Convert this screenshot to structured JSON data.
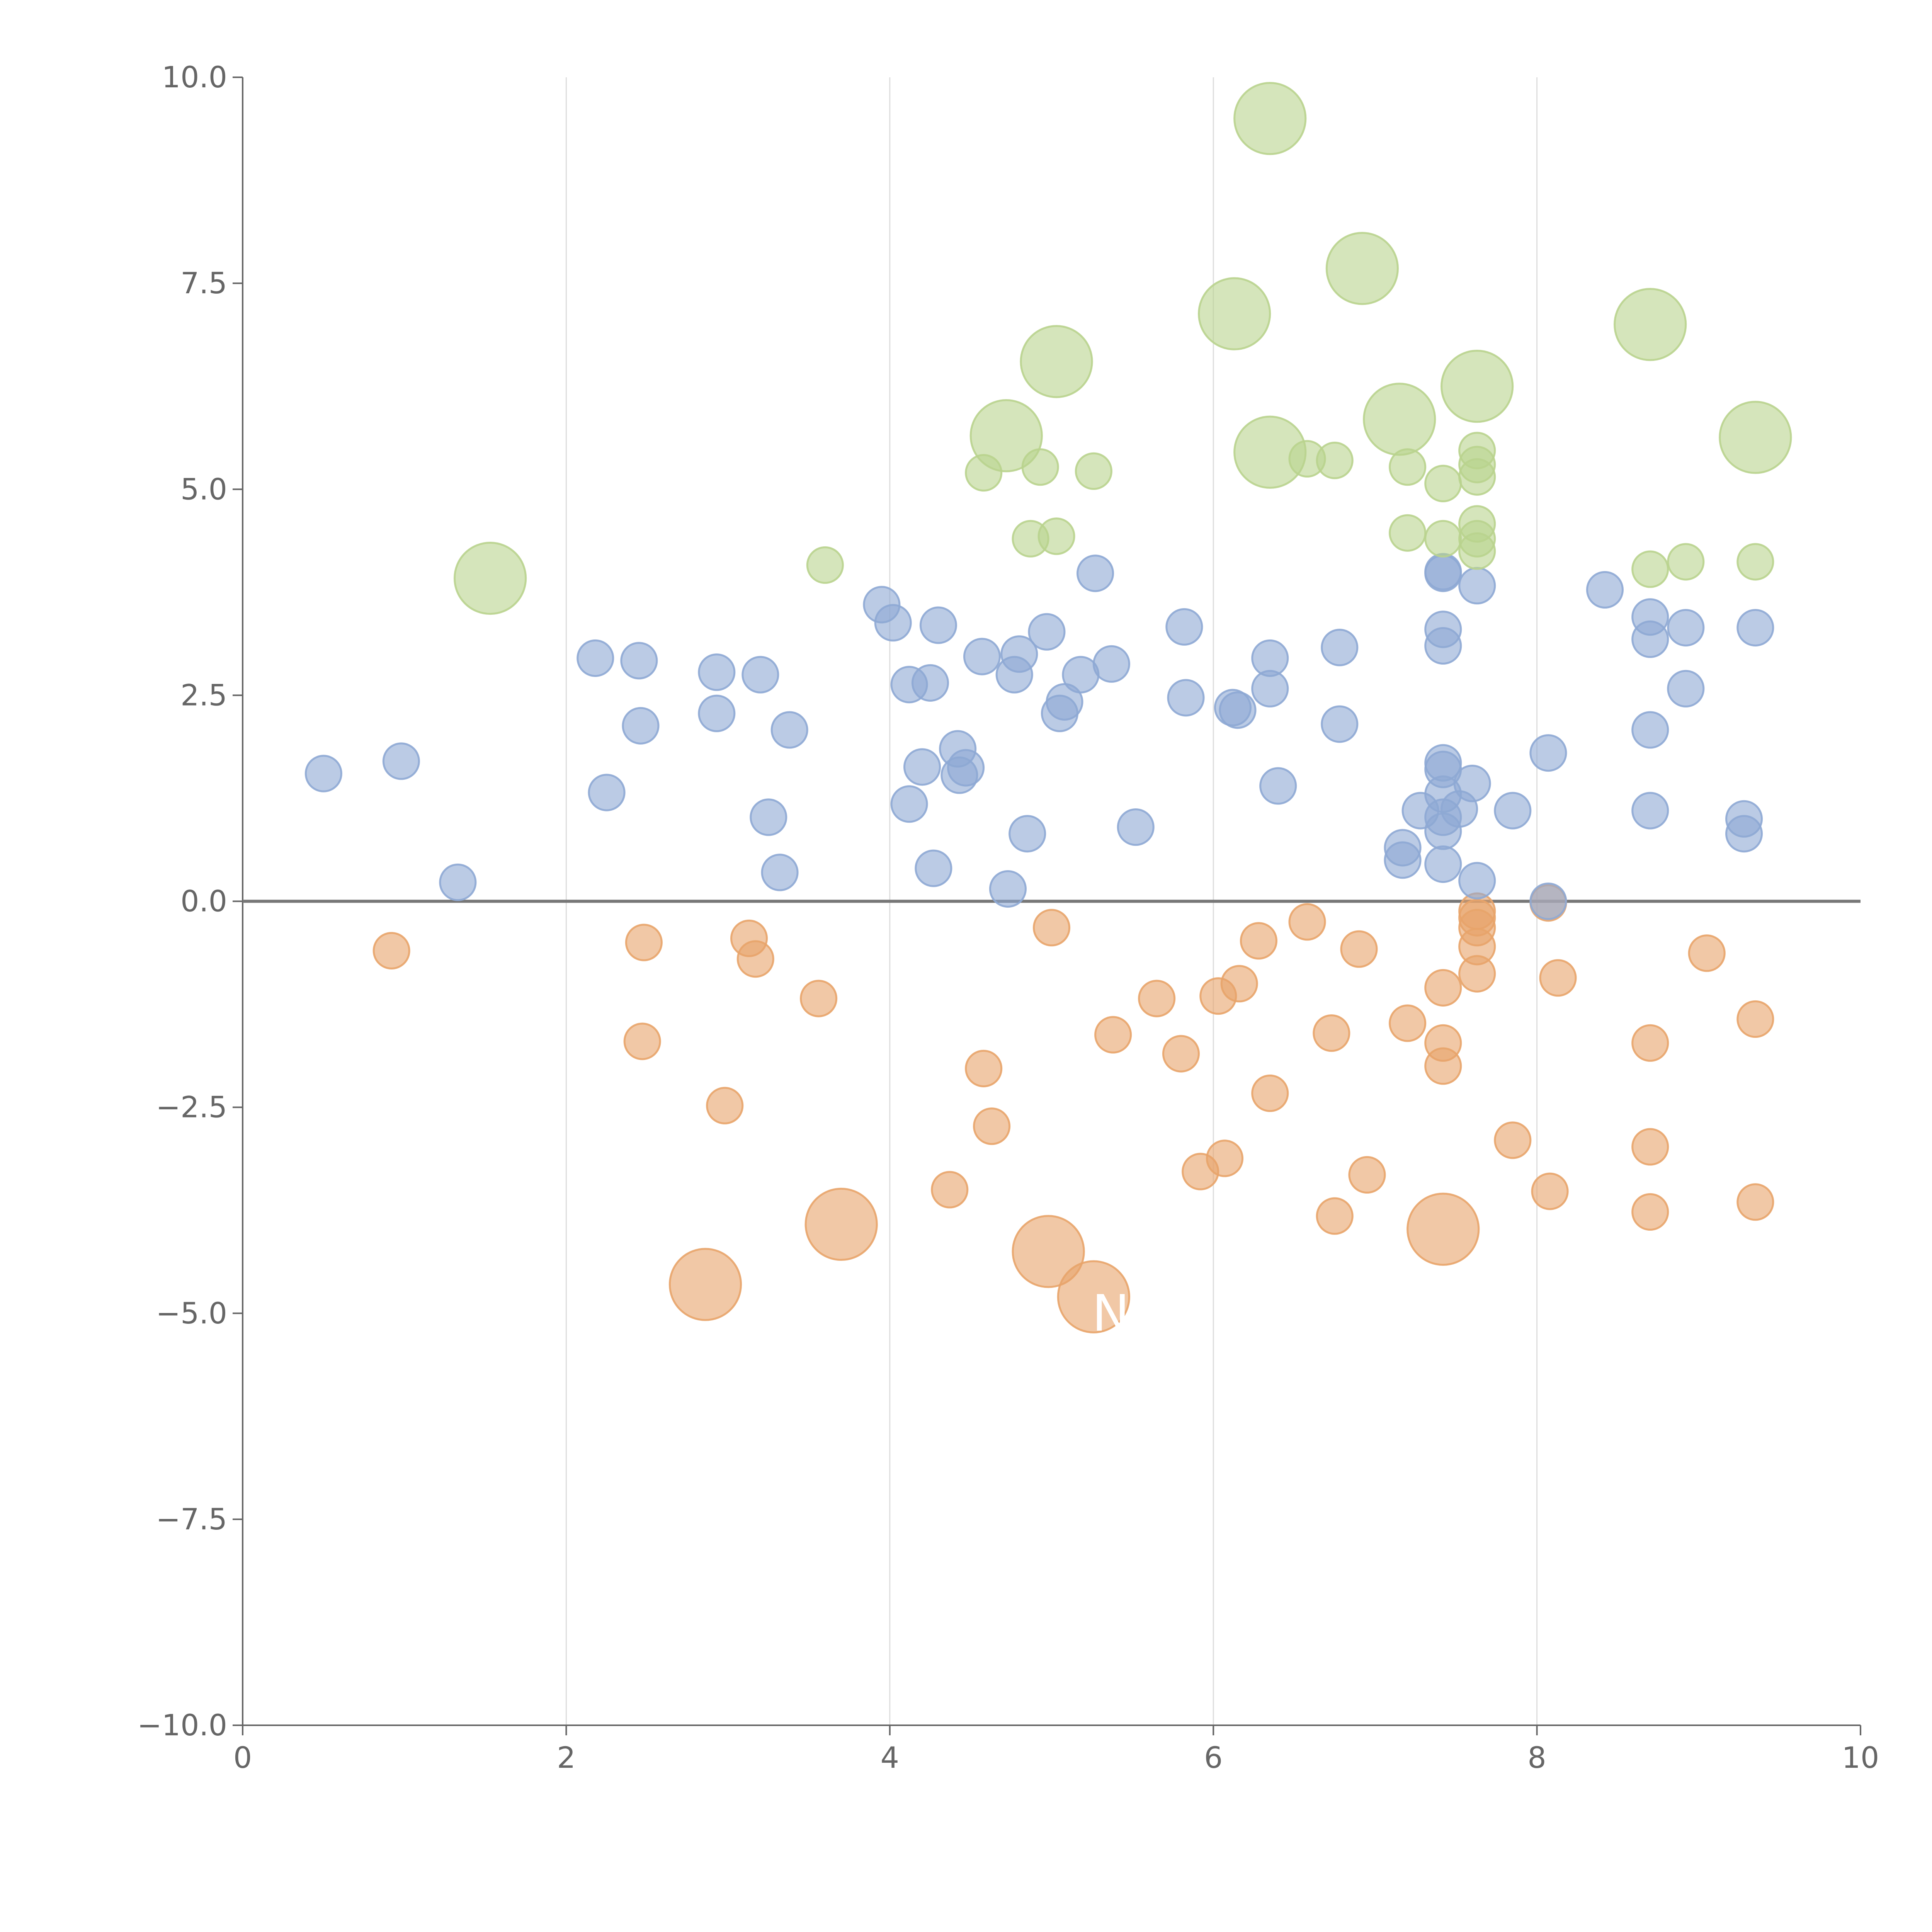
{
  "chart_data": {
    "type": "scatter",
    "title": "",
    "xlabel": "",
    "ylabel": "",
    "xlim": [
      0,
      10
    ],
    "ylim": [
      -10,
      10
    ],
    "xticks": [
      "0",
      "2",
      "4",
      "6",
      "8",
      "10"
    ],
    "yticks": [
      "10.0",
      "7.5",
      "5.0",
      "2.5",
      "0.0",
      "−2.5",
      "−5.0",
      "−7.5",
      "−10.0"
    ],
    "grid": "vertical",
    "zero_line": true,
    "legend": "none",
    "annotations": [
      {
        "text": "NM",
        "x": 5.5,
        "y": -5.0
      }
    ],
    "series": [
      {
        "name": "negative",
        "color": "#e8a46a",
        "points": [
          [
            0.92,
            -0.6,
            0.11
          ],
          [
            2.48,
            -0.5,
            0.11
          ],
          [
            2.47,
            -1.7,
            0.11
          ],
          [
            3.13,
            -0.45,
            0.11
          ],
          [
            3.17,
            -0.7,
            0.11
          ],
          [
            2.98,
            -2.48,
            0.11
          ],
          [
            3.56,
            -1.18,
            0.11
          ],
          [
            5.0,
            -0.32,
            0.11
          ],
          [
            4.58,
            -2.03,
            0.11
          ],
          [
            4.63,
            -2.73,
            0.11
          ],
          [
            4.37,
            -3.5,
            0.11
          ],
          [
            5.38,
            -1.62,
            0.11
          ],
          [
            5.65,
            -1.18,
            0.11
          ],
          [
            5.8,
            -1.85,
            0.11
          ],
          [
            6.03,
            -1.15,
            0.11
          ],
          [
            6.16,
            -1.0,
            0.11
          ],
          [
            6.28,
            -0.48,
            0.11
          ],
          [
            6.35,
            -2.33,
            0.11
          ],
          [
            5.92,
            -3.28,
            0.11
          ],
          [
            6.07,
            -3.12,
            0.11
          ],
          [
            6.58,
            -0.25,
            0.11
          ],
          [
            6.9,
            -0.58,
            0.11
          ],
          [
            6.73,
            -1.6,
            0.11
          ],
          [
            6.75,
            -3.82,
            0.11
          ],
          [
            6.95,
            -3.32,
            0.11
          ],
          [
            7.2,
            -1.48,
            0.11
          ],
          [
            7.42,
            -1.05,
            0.11
          ],
          [
            7.42,
            -1.72,
            0.11
          ],
          [
            7.42,
            -2.0,
            0.11
          ],
          [
            7.63,
            -0.12,
            0.11
          ],
          [
            7.63,
            -0.2,
            0.11
          ],
          [
            7.63,
            -0.32,
            0.11
          ],
          [
            7.63,
            -0.55,
            0.11
          ],
          [
            7.63,
            -0.88,
            0.11
          ],
          [
            7.85,
            -2.9,
            0.11
          ],
          [
            8.07,
            -0.02,
            0.11
          ],
          [
            8.13,
            -0.93,
            0.11
          ],
          [
            8.08,
            -3.52,
            0.11
          ],
          [
            8.7,
            -1.72,
            0.11
          ],
          [
            8.7,
            -2.98,
            0.11
          ],
          [
            8.7,
            -3.77,
            0.11
          ],
          [
            9.05,
            -0.63,
            0.11
          ],
          [
            9.35,
            -1.43,
            0.11
          ],
          [
            9.35,
            -3.65,
            0.11
          ],
          [
            2.86,
            -4.65,
            0.22
          ],
          [
            3.7,
            -3.92,
            0.22
          ],
          [
            4.98,
            -4.25,
            0.22
          ],
          [
            5.26,
            -4.8,
            0.22
          ],
          [
            7.42,
            -3.98,
            0.22
          ]
        ]
      },
      {
        "name": "low-positive",
        "color": "#8ea9d4",
        "points": [
          [
            0.5,
            1.55,
            0.11
          ],
          [
            0.98,
            1.7,
            0.11
          ],
          [
            1.33,
            0.23,
            0.11
          ],
          [
            2.18,
            2.95,
            0.11
          ],
          [
            2.45,
            2.92,
            0.11
          ],
          [
            2.25,
            1.32,
            0.11
          ],
          [
            2.46,
            2.13,
            0.11
          ],
          [
            2.93,
            2.78,
            0.11
          ],
          [
            2.93,
            2.28,
            0.11
          ],
          [
            3.2,
            2.75,
            0.11
          ],
          [
            3.25,
            1.02,
            0.11
          ],
          [
            3.32,
            0.35,
            0.11
          ],
          [
            3.38,
            2.08,
            0.11
          ],
          [
            3.95,
            3.6,
            0.11
          ],
          [
            4.02,
            3.38,
            0.11
          ],
          [
            4.12,
            2.63,
            0.11
          ],
          [
            4.12,
            1.18,
            0.11
          ],
          [
            4.2,
            1.63,
            0.11
          ],
          [
            4.25,
            2.65,
            0.11
          ],
          [
            4.3,
            3.35,
            0.11
          ],
          [
            4.27,
            0.4,
            0.11
          ],
          [
            4.42,
            1.85,
            0.11
          ],
          [
            4.43,
            1.53,
            0.11
          ],
          [
            4.47,
            1.62,
            0.11
          ],
          [
            4.57,
            2.97,
            0.11
          ],
          [
            4.73,
            0.15,
            0.11
          ],
          [
            4.77,
            2.75,
            0.11
          ],
          [
            4.8,
            3.0,
            0.11
          ],
          [
            4.85,
            0.82,
            0.11
          ],
          [
            4.97,
            3.27,
            0.11
          ],
          [
            5.05,
            2.28,
            0.11
          ],
          [
            5.08,
            2.42,
            0.11
          ],
          [
            5.18,
            2.75,
            0.11
          ],
          [
            5.27,
            3.98,
            0.11
          ],
          [
            5.37,
            2.88,
            0.11
          ],
          [
            5.52,
            0.9,
            0.11
          ],
          [
            5.82,
            3.33,
            0.11
          ],
          [
            5.83,
            2.47,
            0.11
          ],
          [
            6.12,
            2.35,
            0.11
          ],
          [
            6.15,
            2.32,
            0.11
          ],
          [
            6.35,
            2.95,
            0.11
          ],
          [
            6.35,
            2.58,
            0.11
          ],
          [
            6.4,
            1.4,
            0.11
          ],
          [
            6.78,
            3.08,
            0.11
          ],
          [
            6.78,
            2.15,
            0.11
          ],
          [
            7.17,
            0.65,
            0.11
          ],
          [
            7.17,
            0.5,
            0.11
          ],
          [
            7.28,
            1.1,
            0.11
          ],
          [
            7.42,
            3.98,
            0.11
          ],
          [
            7.42,
            4.0,
            0.11
          ],
          [
            7.42,
            3.3,
            0.11
          ],
          [
            7.42,
            3.1,
            0.11
          ],
          [
            7.42,
            1.68,
            0.11
          ],
          [
            7.42,
            1.6,
            0.11
          ],
          [
            7.42,
            1.3,
            0.11
          ],
          [
            7.42,
            1.02,
            0.11
          ],
          [
            7.42,
            0.85,
            0.11
          ],
          [
            7.42,
            0.45,
            0.11
          ],
          [
            7.52,
            1.12,
            0.11
          ],
          [
            7.6,
            1.43,
            0.11
          ],
          [
            7.63,
            3.83,
            0.11
          ],
          [
            7.63,
            0.25,
            0.11
          ],
          [
            7.85,
            1.1,
            0.11
          ],
          [
            8.07,
            1.8,
            0.11
          ],
          [
            8.07,
            0.0,
            0.11
          ],
          [
            8.42,
            3.78,
            0.11
          ],
          [
            8.7,
            3.45,
            0.11
          ],
          [
            8.7,
            3.18,
            0.11
          ],
          [
            8.7,
            2.08,
            0.11
          ],
          [
            8.7,
            1.1,
            0.11
          ],
          [
            8.92,
            3.32,
            0.11
          ],
          [
            8.92,
            2.58,
            0.11
          ],
          [
            9.28,
            1.0,
            0.11
          ],
          [
            9.28,
            0.82,
            0.11
          ],
          [
            9.35,
            3.32,
            0.11
          ]
        ]
      },
      {
        "name": "high-positive",
        "color": "#b9d38e",
        "points": [
          [
            3.6,
            4.08,
            0.11
          ],
          [
            4.58,
            5.2,
            0.11
          ],
          [
            4.87,
            4.4,
            0.11
          ],
          [
            4.93,
            5.27,
            0.11
          ],
          [
            5.03,
            4.43,
            0.11
          ],
          [
            5.26,
            5.22,
            0.11
          ],
          [
            6.58,
            5.37,
            0.11
          ],
          [
            6.75,
            5.35,
            0.11
          ],
          [
            7.2,
            5.27,
            0.11
          ],
          [
            7.2,
            4.47,
            0.11
          ],
          [
            7.42,
            5.07,
            0.11
          ],
          [
            7.42,
            4.4,
            0.11
          ],
          [
            7.63,
            5.47,
            0.11
          ],
          [
            7.63,
            5.3,
            0.11
          ],
          [
            7.63,
            5.15,
            0.11
          ],
          [
            7.63,
            4.58,
            0.11
          ],
          [
            7.63,
            4.4,
            0.11
          ],
          [
            7.63,
            4.25,
            0.11
          ],
          [
            8.7,
            4.03,
            0.11
          ],
          [
            8.92,
            4.12,
            0.11
          ],
          [
            9.35,
            4.12,
            0.11
          ],
          [
            1.53,
            3.92,
            0.22
          ],
          [
            4.72,
            5.65,
            0.22
          ],
          [
            5.03,
            6.55,
            0.22
          ],
          [
            6.13,
            7.13,
            0.22
          ],
          [
            6.35,
            9.5,
            0.22
          ],
          [
            6.35,
            5.45,
            0.22
          ],
          [
            6.92,
            7.68,
            0.22
          ],
          [
            7.15,
            5.85,
            0.22
          ],
          [
            7.63,
            6.25,
            0.22
          ],
          [
            8.7,
            7.0,
            0.22
          ],
          [
            9.35,
            5.63,
            0.22
          ]
        ]
      }
    ]
  }
}
